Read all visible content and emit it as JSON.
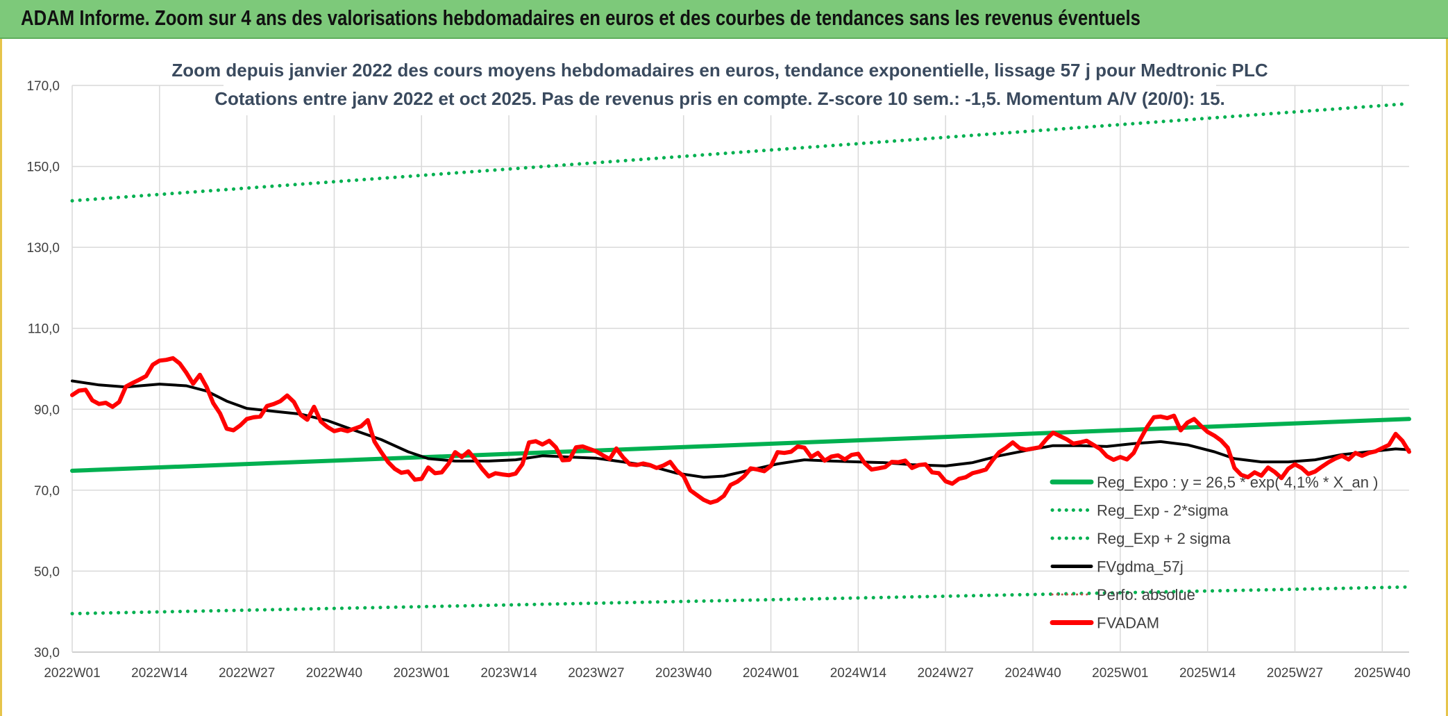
{
  "header": {
    "title": "ADAM Informe. Zoom sur 4 ans des valorisations hebdomadaires en euros et des courbes de tendances sans les revenus éventuels"
  },
  "colors": {
    "banner": "#7dc97a",
    "trend": "#00b050",
    "price": "#ff0000",
    "smooth": "#000000",
    "perf": "#c0504d",
    "grid": "#d9d9d9",
    "frame": "#e6c44a"
  },
  "chart_data": {
    "type": "line",
    "title": "Zoom depuis janvier 2022 des cours moyens hebdomadaires en euros, tendance exponentielle, lissage 57 j pour Medtronic PLC",
    "subtitle": "Cotations entre janv 2022 et oct 2025. Pas de revenus pris en compte. Z-score 10 sem.: -1,5. Momentum A/V (20/0): 15.",
    "xlabel": "",
    "ylabel": "",
    "ylim": [
      30,
      170
    ],
    "yticks": [
      "30,0",
      "50,0",
      "70,0",
      "90,0",
      "110,0",
      "130,0",
      "150,0",
      "170,0"
    ],
    "x_tick_labels": [
      "2022W01",
      "2022W14",
      "2022W27",
      "2022W40",
      "2023W01",
      "2023W14",
      "2023W27",
      "2023W40",
      "2024W01",
      "2024W14",
      "2024W27",
      "2024W40",
      "2025W01",
      "2025W14",
      "2025W27",
      "2025W40"
    ],
    "x_tick_index": [
      0,
      13,
      26,
      39,
      52,
      65,
      78,
      91,
      104,
      117,
      130,
      143,
      156,
      169,
      182,
      195
    ],
    "n_weeks": 200,
    "grid": true,
    "legend_placement": "bottom-right",
    "legend": [
      "Reg_Expo : y = 26,5 * exp( 4,1% *  X_an )",
      "Reg_Exp - 2*sigma",
      "Reg_Exp + 2 sigma",
      "FVgdma_57j",
      "Perfo. absolue",
      "FVADAM"
    ],
    "series": [
      {
        "name": "Reg_Expo : y = 26,5 * exp( 4,1% *  X_an )",
        "style": "solid",
        "color": "#00b050",
        "points": [
          [
            0,
            74.8
          ],
          [
            199,
            87.6
          ]
        ]
      },
      {
        "name": "Reg_Exp - 2*sigma",
        "style": "dotted",
        "color": "#00b050",
        "points": [
          [
            0,
            39.5
          ],
          [
            199,
            46.1
          ]
        ]
      },
      {
        "name": "Reg_Exp + 2 sigma",
        "style": "dotted",
        "color": "#00b050",
        "points": [
          [
            0,
            141.5
          ],
          [
            199,
            165.5
          ]
        ]
      },
      {
        "name": "FVgdma_57j",
        "style": "solid",
        "color": "#000000",
        "points": [
          [
            0,
            97
          ],
          [
            4,
            96
          ],
          [
            8,
            95.5
          ],
          [
            13,
            96.2
          ],
          [
            17,
            95.8
          ],
          [
            20,
            94.5
          ],
          [
            23,
            92
          ],
          [
            26,
            90.2
          ],
          [
            30,
            89.5
          ],
          [
            34,
            88.8
          ],
          [
            38,
            87.2
          ],
          [
            42,
            84.8
          ],
          [
            46,
            82.5
          ],
          [
            50,
            79.5
          ],
          [
            53,
            77.8
          ],
          [
            57,
            77.2
          ],
          [
            62,
            77.2
          ],
          [
            66,
            77.5
          ],
          [
            70,
            78.5
          ],
          [
            74,
            78.2
          ],
          [
            78,
            77.9
          ],
          [
            82,
            77
          ],
          [
            86,
            76
          ],
          [
            90,
            74.2
          ],
          [
            94,
            73.2
          ],
          [
            97,
            73.5
          ],
          [
            101,
            75
          ],
          [
            105,
            76.5
          ],
          [
            109,
            77.5
          ],
          [
            113,
            77.2
          ],
          [
            117,
            77
          ],
          [
            121,
            76.8
          ],
          [
            125,
            76.3
          ],
          [
            130,
            76
          ],
          [
            134,
            76.8
          ],
          [
            138,
            78.5
          ],
          [
            142,
            79.8
          ],
          [
            146,
            81
          ],
          [
            150,
            81
          ],
          [
            154,
            80.8
          ],
          [
            158,
            81.5
          ],
          [
            162,
            82
          ],
          [
            166,
            81.2
          ],
          [
            170,
            79.5
          ],
          [
            173,
            77.8
          ],
          [
            177,
            77
          ],
          [
            181,
            77
          ],
          [
            185,
            77.5
          ],
          [
            189,
            78.8
          ],
          [
            193,
            79.5
          ],
          [
            197,
            80.2
          ],
          [
            199,
            80
          ]
        ]
      },
      {
        "name": "FVADAM",
        "style": "solid",
        "color": "#ff0000",
        "points": [
          [
            0,
            93.5
          ],
          [
            1,
            94.6
          ],
          [
            2,
            94.8
          ],
          [
            3,
            92.2
          ],
          [
            4,
            91.3
          ],
          [
            5,
            91.6
          ],
          [
            6,
            90.6
          ],
          [
            7,
            91.8
          ],
          [
            8,
            95.6
          ],
          [
            9,
            96.5
          ],
          [
            10,
            97.3
          ],
          [
            11,
            98.2
          ],
          [
            12,
            101
          ],
          [
            13,
            102
          ],
          [
            14,
            102.2
          ],
          [
            15,
            102.6
          ],
          [
            16,
            101.3
          ],
          [
            17,
            99
          ],
          [
            18,
            96.3
          ],
          [
            19,
            98.5
          ],
          [
            20,
            95.5
          ],
          [
            21,
            91.5
          ],
          [
            22,
            89
          ],
          [
            23,
            85.2
          ],
          [
            24,
            84.8
          ],
          [
            25,
            86
          ],
          [
            26,
            87.6
          ],
          [
            27,
            88
          ],
          [
            28,
            88.2
          ],
          [
            29,
            90.8
          ],
          [
            30,
            91.3
          ],
          [
            31,
            92
          ],
          [
            32,
            93.4
          ],
          [
            33,
            91.8
          ],
          [
            34,
            88.6
          ],
          [
            35,
            87.4
          ],
          [
            36,
            90.6
          ],
          [
            37,
            87
          ],
          [
            38,
            85.6
          ],
          [
            39,
            84.6
          ],
          [
            40,
            85
          ],
          [
            41,
            84.6
          ],
          [
            42,
            85.2
          ],
          [
            43,
            85.8
          ],
          [
            44,
            87.3
          ],
          [
            45,
            82
          ],
          [
            46,
            79.4
          ],
          [
            47,
            77
          ],
          [
            48,
            75.3
          ],
          [
            49,
            74.3
          ],
          [
            50,
            74.6
          ],
          [
            51,
            72.6
          ],
          [
            52,
            72.8
          ],
          [
            53,
            75.6
          ],
          [
            54,
            74.2
          ],
          [
            55,
            74.4
          ],
          [
            56,
            76.5
          ],
          [
            57,
            79.4
          ],
          [
            58,
            78.2
          ],
          [
            59,
            79.6
          ],
          [
            60,
            77.6
          ],
          [
            61,
            75.3
          ],
          [
            62,
            73.4
          ],
          [
            63,
            74.2
          ],
          [
            64,
            73.9
          ],
          [
            65,
            73.7
          ],
          [
            66,
            74.1
          ],
          [
            67,
            76.4
          ],
          [
            68,
            81.8
          ],
          [
            69,
            82.1
          ],
          [
            70,
            81.3
          ],
          [
            71,
            82.2
          ],
          [
            72,
            80.6
          ],
          [
            73,
            77.4
          ],
          [
            74,
            77.5
          ],
          [
            75,
            80.6
          ],
          [
            76,
            80.8
          ],
          [
            77,
            80.2
          ],
          [
            78,
            79.6
          ],
          [
            79,
            78.6
          ],
          [
            80,
            77.7
          ],
          [
            81,
            80.3
          ],
          [
            82,
            78.1
          ],
          [
            83,
            76.4
          ],
          [
            84,
            76.2
          ],
          [
            85,
            76.6
          ],
          [
            86,
            76.2
          ],
          [
            87,
            75.5
          ],
          [
            88,
            76.1
          ],
          [
            89,
            77
          ],
          [
            90,
            74.8
          ],
          [
            91,
            73.5
          ],
          [
            92,
            70
          ],
          [
            93,
            68.8
          ],
          [
            94,
            67.6
          ],
          [
            95,
            66.9
          ],
          [
            96,
            67.4
          ],
          [
            97,
            68.6
          ],
          [
            98,
            71.3
          ],
          [
            99,
            72.1
          ],
          [
            100,
            73.4
          ],
          [
            101,
            75.4
          ],
          [
            102,
            75.1
          ],
          [
            103,
            74.7
          ],
          [
            104,
            76
          ],
          [
            105,
            79.4
          ],
          [
            106,
            79.2
          ],
          [
            107,
            79.5
          ],
          [
            108,
            80.8
          ],
          [
            109,
            80.5
          ],
          [
            110,
            78.2
          ],
          [
            111,
            79.2
          ],
          [
            112,
            77.3
          ],
          [
            113,
            78.3
          ],
          [
            114,
            78.6
          ],
          [
            115,
            77.6
          ],
          [
            116,
            78.7
          ],
          [
            117,
            79
          ],
          [
            118,
            76.6
          ],
          [
            119,
            75.1
          ],
          [
            120,
            75.4
          ],
          [
            121,
            75.7
          ],
          [
            122,
            77
          ],
          [
            123,
            76.9
          ],
          [
            124,
            77.3
          ],
          [
            125,
            75.5
          ],
          [
            126,
            76.2
          ],
          [
            127,
            76.4
          ],
          [
            128,
            74.4
          ],
          [
            129,
            74.2
          ],
          [
            130,
            72.2
          ],
          [
            131,
            71.6
          ],
          [
            132,
            72.8
          ],
          [
            133,
            73.2
          ],
          [
            134,
            74.2
          ],
          [
            135,
            74.6
          ],
          [
            136,
            75.1
          ],
          [
            137,
            77.4
          ],
          [
            138,
            79.4
          ],
          [
            139,
            80.5
          ],
          [
            140,
            81.8
          ],
          [
            141,
            80.4
          ],
          [
            142,
            80
          ],
          [
            143,
            80.3
          ],
          [
            144,
            80.6
          ],
          [
            145,
            82.6
          ],
          [
            146,
            84.2
          ],
          [
            147,
            83.4
          ],
          [
            148,
            82.6
          ],
          [
            149,
            81.5
          ],
          [
            150,
            81.8
          ],
          [
            151,
            82.2
          ],
          [
            152,
            81.2
          ],
          [
            153,
            80.2
          ],
          [
            154,
            78.4
          ],
          [
            155,
            77.5
          ],
          [
            156,
            78.2
          ],
          [
            157,
            77.6
          ],
          [
            158,
            79.2
          ],
          [
            159,
            82.6
          ],
          [
            160,
            85.6
          ],
          [
            161,
            88
          ],
          [
            162,
            88.2
          ],
          [
            163,
            87.8
          ],
          [
            164,
            88.4
          ],
          [
            165,
            84.8
          ],
          [
            166,
            86.7
          ],
          [
            167,
            87.6
          ],
          [
            168,
            85.9
          ],
          [
            169,
            84.4
          ],
          [
            170,
            83.5
          ],
          [
            171,
            82.3
          ],
          [
            172,
            80.5
          ],
          [
            173,
            75.5
          ],
          [
            174,
            73.8
          ],
          [
            175,
            73.2
          ],
          [
            176,
            74.4
          ],
          [
            177,
            73.6
          ],
          [
            178,
            75.6
          ],
          [
            179,
            74.5
          ],
          [
            180,
            73
          ],
          [
            181,
            75.3
          ],
          [
            182,
            76.4
          ],
          [
            183,
            75.5
          ],
          [
            184,
            74
          ],
          [
            185,
            74.6
          ],
          [
            186,
            75.8
          ],
          [
            187,
            76.9
          ],
          [
            188,
            77.8
          ],
          [
            189,
            78.5
          ],
          [
            190,
            77.6
          ],
          [
            191,
            79.2
          ],
          [
            192,
            78.5
          ],
          [
            193,
            79.2
          ],
          [
            194,
            79.6
          ],
          [
            195,
            80.4
          ],
          [
            196,
            81.2
          ],
          [
            197,
            83.9
          ],
          [
            198,
            82.2
          ],
          [
            199,
            79.5
          ]
        ]
      }
    ]
  }
}
